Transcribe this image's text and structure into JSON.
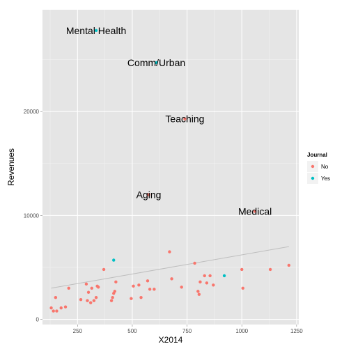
{
  "chart_data": {
    "type": "scatter",
    "xlabel": "X2014",
    "ylabel": "Revenues",
    "xlim": [
      90,
      1260
    ],
    "ylim": [
      -500,
      29800
    ],
    "x_ticks": [
      250,
      500,
      750,
      1000,
      1250
    ],
    "y_ticks": [
      0,
      10000,
      20000
    ],
    "x_tick_labels": [
      "250",
      "500",
      "750",
      "1000",
      "1250"
    ],
    "y_tick_labels": [
      "0",
      "10000",
      "20000"
    ],
    "grid": true,
    "legend_position": "right",
    "legend_title": "Journal",
    "series": [
      {
        "name": "No",
        "color": "#F8766D",
        "points": [
          [
            130,
            1100
          ],
          [
            140,
            800
          ],
          [
            150,
            2100
          ],
          [
            155,
            800
          ],
          [
            175,
            1100
          ],
          [
            195,
            1200
          ],
          [
            210,
            3000
          ],
          [
            265,
            1900
          ],
          [
            290,
            3400
          ],
          [
            295,
            1800
          ],
          [
            300,
            2600
          ],
          [
            310,
            1600
          ],
          [
            315,
            3000
          ],
          [
            325,
            1800
          ],
          [
            335,
            2100
          ],
          [
            340,
            3200
          ],
          [
            345,
            3100
          ],
          [
            370,
            4800
          ],
          [
            405,
            1800
          ],
          [
            410,
            2100
          ],
          [
            415,
            2500
          ],
          [
            420,
            2700
          ],
          [
            425,
            3600
          ],
          [
            495,
            2000
          ],
          [
            505,
            3200
          ],
          [
            530,
            3300
          ],
          [
            540,
            2100
          ],
          [
            570,
            3700
          ],
          [
            580,
            2900
          ],
          [
            600,
            2900
          ],
          [
            575,
            12000
          ],
          [
            670,
            6500
          ],
          [
            680,
            3900
          ],
          [
            725,
            3100
          ],
          [
            740,
            19300
          ],
          [
            785,
            5400
          ],
          [
            800,
            2700
          ],
          [
            805,
            2400
          ],
          [
            810,
            3600
          ],
          [
            830,
            4200
          ],
          [
            840,
            3500
          ],
          [
            855,
            4200
          ],
          [
            870,
            3300
          ],
          [
            1000,
            4800
          ],
          [
            1005,
            3000
          ],
          [
            1060,
            10400
          ],
          [
            1130,
            4800
          ],
          [
            1215,
            5200
          ]
        ]
      },
      {
        "name": "Yes",
        "color": "#00BFC4",
        "points": [
          [
            335,
            27800
          ],
          [
            415,
            5700
          ],
          [
            610,
            24700
          ],
          [
            920,
            4200
          ]
        ]
      }
    ],
    "trend_line": {
      "x": [
        130,
        1215
      ],
      "y": [
        3000,
        7000
      ],
      "color": "#BEBEBE"
    },
    "annotations": [
      {
        "text": "Mental Health",
        "x": 335,
        "y": 27800
      },
      {
        "text": "Comm/Urban",
        "x": 610,
        "y": 24700
      },
      {
        "text": "Teaching",
        "x": 740,
        "y": 19300
      },
      {
        "text": "Aging",
        "x": 575,
        "y": 12000
      },
      {
        "text": "Medical",
        "x": 1060,
        "y": 10400
      }
    ]
  }
}
